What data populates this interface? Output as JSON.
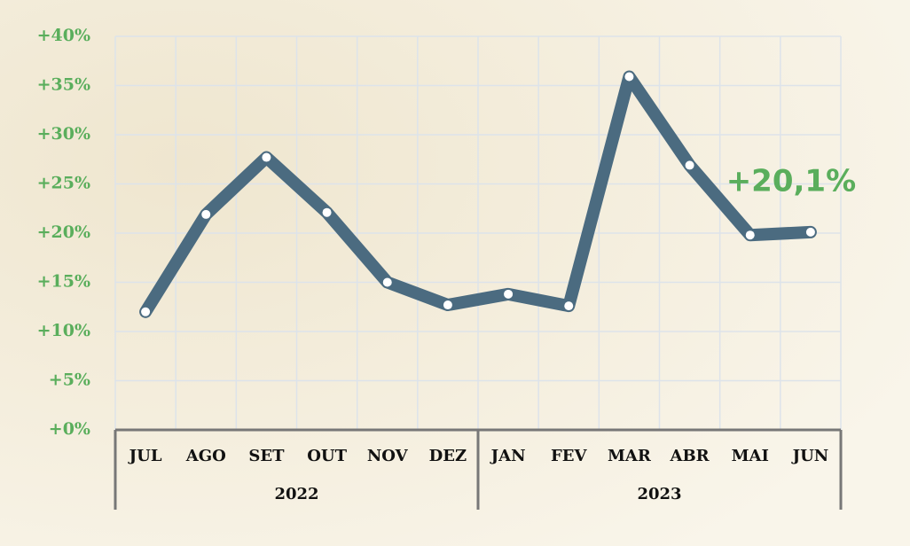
{
  "chart_data": {
    "type": "line",
    "categories": [
      "JUL",
      "AGO",
      "SET",
      "OUT",
      "NOV",
      "DEZ",
      "JAN",
      "FEV",
      "MAR",
      "ABR",
      "MAI",
      "JUN"
    ],
    "category_groups": [
      "2022",
      "2022",
      "2022",
      "2022",
      "2022",
      "2022",
      "2023",
      "2023",
      "2023",
      "2023",
      "2023",
      "2023"
    ],
    "values": [
      12,
      21.9,
      27.7,
      22.1,
      15,
      12.7,
      13.8,
      12.6,
      35.9,
      26.9,
      19.8,
      20.1
    ],
    "value_labels": [
      null,
      null,
      null,
      null,
      null,
      null,
      null,
      null,
      null,
      null,
      null,
      "+20,1%"
    ],
    "color": "#4b6b80",
    "ylim": [
      0,
      40
    ],
    "yticks": [
      {
        "value": 0,
        "label": "+0%"
      },
      {
        "value": 5,
        "label": "+5%"
      },
      {
        "value": 10,
        "label": "+10%"
      },
      {
        "value": 15,
        "label": "+15%"
      },
      {
        "value": 20,
        "label": "+20%"
      },
      {
        "value": 25,
        "label": "+25%"
      },
      {
        "value": 30,
        "label": "+30%"
      },
      {
        "value": 35,
        "label": "+35%"
      },
      {
        "value": 40,
        "label": "+40%"
      }
    ],
    "grid": true
  }
}
